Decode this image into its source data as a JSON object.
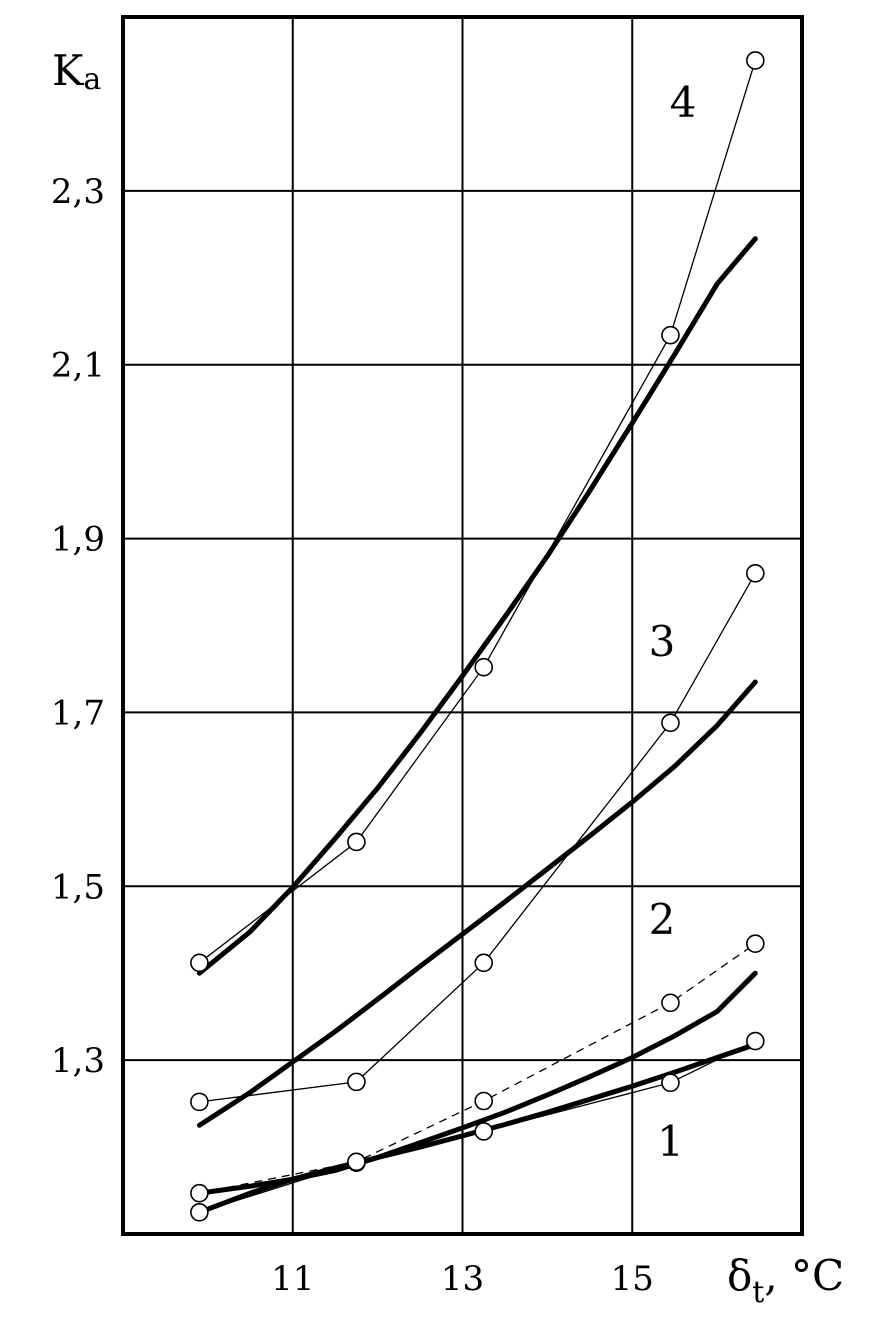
{
  "chart_data": {
    "type": "line",
    "xlabel": "δ",
    "xlabel_sub": "t",
    "xlabel_unit": ", °C",
    "ylabel": "K",
    "ylabel_sub": "a",
    "xlim": [
      9,
      17
    ],
    "ylim": [
      1.1,
      2.5
    ],
    "x_ticks": [
      11,
      13,
      15
    ],
    "x_tick_labels": [
      "11",
      "13",
      "15"
    ],
    "y_ticks": [
      1.3,
      1.5,
      1.7,
      1.9,
      2.1,
      2.3
    ],
    "y_tick_labels": [
      "1,3",
      "1,5",
      "1,7",
      "1,9",
      "2,1",
      "2,3"
    ],
    "x_grid": [
      11,
      13,
      15
    ],
    "y_grid": [
      1.3,
      1.5,
      1.7,
      1.9,
      2.1,
      2.3
    ],
    "grid": true,
    "series": [
      {
        "label": "1",
        "label_position": [
          15.45,
          1.19
        ],
        "measured": {
          "x": [
            9.9,
            11.75,
            13.25,
            15.45,
            16.45
          ],
          "y": [
            1.125,
            1.182,
            1.218,
            1.274,
            1.322
          ],
          "dashed": false
        },
        "fitted": {
          "x": [
            9.9,
            10.5,
            11.0,
            11.5,
            12.0,
            12.5,
            13.0,
            13.5,
            14.0,
            14.5,
            15.0,
            15.5,
            16.0,
            16.45
          ],
          "y": [
            1.125,
            1.147,
            1.163,
            1.176,
            1.188,
            1.2,
            1.213,
            1.226,
            1.24,
            1.255,
            1.27,
            1.286,
            1.303,
            1.318
          ]
        }
      },
      {
        "label": "2",
        "label_position": [
          15.35,
          1.445
        ],
        "measured": {
          "x": [
            9.9,
            11.75,
            13.25,
            15.45,
            16.45
          ],
          "y": [
            1.147,
            1.183,
            1.253,
            1.366,
            1.434
          ],
          "dashed": true
        },
        "fitted": {
          "x": [
            9.9,
            10.5,
            11.0,
            11.5,
            12.0,
            12.5,
            13.0,
            13.5,
            14.0,
            14.5,
            15.0,
            15.5,
            16.0,
            16.45
          ],
          "y": [
            1.147,
            1.155,
            1.163,
            1.173,
            1.188,
            1.205,
            1.222,
            1.24,
            1.26,
            1.281,
            1.303,
            1.328,
            1.356,
            1.4
          ]
        }
      },
      {
        "label": "3",
        "label_position": [
          15.35,
          1.765
        ],
        "measured": {
          "x": [
            9.9,
            11.75,
            13.25,
            15.45,
            16.45
          ],
          "y": [
            1.252,
            1.275,
            1.412,
            1.688,
            1.86
          ],
          "dashed": false
        },
        "fitted": {
          "x": [
            9.9,
            10.5,
            11.0,
            11.5,
            12.0,
            12.5,
            13.0,
            13.5,
            14.0,
            14.5,
            15.0,
            15.5,
            16.0,
            16.45
          ],
          "y": [
            1.225,
            1.263,
            1.298,
            1.333,
            1.37,
            1.408,
            1.445,
            1.482,
            1.52,
            1.558,
            1.597,
            1.638,
            1.685,
            1.735
          ]
        }
      },
      {
        "label": "4",
        "label_position": [
          15.6,
          2.385
        ],
        "measured": {
          "x": [
            9.9,
            11.75,
            13.25,
            15.45,
            16.45
          ],
          "y": [
            1.412,
            1.551,
            1.752,
            2.134,
            2.45
          ],
          "dashed": false
        },
        "fitted": {
          "x": [
            9.9,
            10.5,
            11.0,
            11.5,
            12.0,
            12.5,
            13.0,
            13.5,
            14.0,
            14.5,
            15.0,
            15.5,
            16.0,
            16.45
          ],
          "y": [
            1.4,
            1.448,
            1.499,
            1.555,
            1.613,
            1.676,
            1.742,
            1.81,
            1.88,
            1.955,
            2.033,
            2.112,
            2.193,
            2.245
          ]
        }
      }
    ]
  }
}
